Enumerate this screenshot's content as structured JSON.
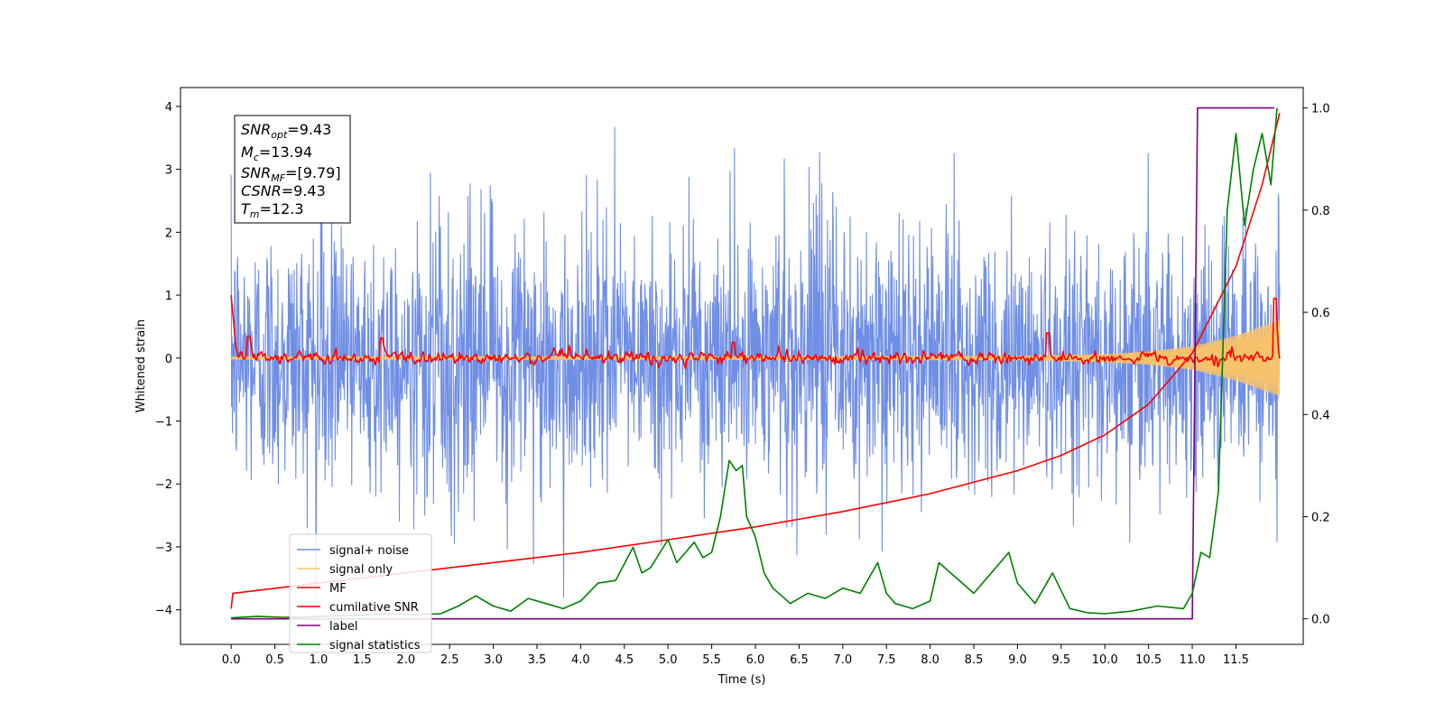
{
  "chart_data": {
    "type": "line",
    "xlabel": "Time (s)",
    "ylabel": "Whitened strain",
    "ylabel_right": "",
    "xlim": [
      -0.58,
      12.27
    ],
    "ylim": [
      -4.55,
      4.3
    ],
    "ylim_right": [
      -0.05,
      1.04
    ],
    "x_ticks": [
      "0.0",
      "0.5",
      "1.0",
      "1.5",
      "2.0",
      "2.5",
      "3.0",
      "3.5",
      "4.0",
      "4.5",
      "5.0",
      "5.5",
      "6.0",
      "6.5",
      "7.0",
      "7.5",
      "8.0",
      "8.5",
      "9.0",
      "9.5",
      "10.0",
      "10.5",
      "11.0",
      "11.5"
    ],
    "y_ticks_left": [
      "4",
      "3",
      "2",
      "1",
      "0",
      "−1",
      "−2",
      "−3",
      "−4"
    ],
    "y_ticks_right": [
      "1.0",
      "0.8",
      "0.6",
      "0.4",
      "0.2",
      "0.0"
    ],
    "grid": false,
    "legend_position": "lower-left",
    "annotation": {
      "line1": {
        "name": "SNR",
        "sub": "opt",
        "value": "=9.43"
      },
      "line2": {
        "name": "M",
        "sub": "c",
        "value": "=13.94"
      },
      "line3": {
        "name": "SNR",
        "sub": "MF",
        "value": "=[9.79]"
      },
      "line4": {
        "name": "CSNR",
        "sub": "",
        "value": "=9.43"
      },
      "line5": {
        "name": "T",
        "sub": "m",
        "value": "=12.3"
      }
    },
    "series": [
      {
        "name": "signal+ noise",
        "axis": "left",
        "color": "#6f8ee6",
        "style": "noise",
        "t_range": [
          0,
          12.0
        ],
        "band_approx": [
          -2.5,
          2.5
        ],
        "peak_approx": [
          -4.1,
          3.9
        ]
      },
      {
        "name": "signal only",
        "axis": "left",
        "color": "#f6c26b",
        "style": "chirp",
        "t_range": [
          0,
          12.0
        ],
        "envelope_t": [
          0,
          9,
          10,
          10.5,
          11,
          11.5,
          12.0
        ],
        "envelope_amp": [
          0.02,
          0.03,
          0.06,
          0.1,
          0.18,
          0.35,
          0.6
        ]
      },
      {
        "name": "MF",
        "axis": "left",
        "color": "#ff0000",
        "style": "mf",
        "t_range": [
          0,
          12.0
        ],
        "start_value": 1.0,
        "band_approx": [
          -0.15,
          0.15
        ],
        "spikes_t": [
          0.2,
          1.72,
          5.75,
          9.35,
          11.95
        ],
        "spikes_v": [
          0.35,
          0.32,
          0.25,
          0.4,
          0.95
        ]
      },
      {
        "name": "cumilative SNR",
        "axis": "right",
        "color": "#ff0000",
        "style": "line",
        "x": [
          0,
          0.02,
          1,
          2,
          3,
          4,
          5,
          6,
          7,
          8,
          9,
          9.5,
          10,
          10.5,
          11,
          11.5,
          11.8,
          12.0
        ],
        "y": [
          0.02,
          0.05,
          0.07,
          0.09,
          0.11,
          0.13,
          0.155,
          0.18,
          0.21,
          0.245,
          0.29,
          0.32,
          0.36,
          0.42,
          0.52,
          0.69,
          0.85,
          0.99
        ]
      },
      {
        "name": "label",
        "axis": "right",
        "color": "#800080",
        "style": "line",
        "x": [
          0,
          11.0,
          11.06,
          11.94
        ],
        "y": [
          0,
          0,
          1.0,
          1.0
        ]
      },
      {
        "name": "signal statistics",
        "axis": "right",
        "color": "#008000",
        "style": "line",
        "x": [
          0,
          0.3,
          0.6,
          0.9,
          1.2,
          1.5,
          1.8,
          2.1,
          2.4,
          2.6,
          2.8,
          3.0,
          3.2,
          3.4,
          3.6,
          3.8,
          4.0,
          4.2,
          4.4,
          4.6,
          4.7,
          4.8,
          5.0,
          5.1,
          5.2,
          5.3,
          5.4,
          5.5,
          5.6,
          5.7,
          5.78,
          5.85,
          5.9,
          6.0,
          6.1,
          6.2,
          6.4,
          6.6,
          6.8,
          7.0,
          7.2,
          7.4,
          7.5,
          7.6,
          7.8,
          8.0,
          8.1,
          8.3,
          8.5,
          8.7,
          8.9,
          9.0,
          9.2,
          9.4,
          9.6,
          9.8,
          10.0,
          10.3,
          10.6,
          10.9,
          11.0,
          11.1,
          11.2,
          11.3,
          11.4,
          11.5,
          11.6,
          11.7,
          11.8,
          11.9,
          11.97
        ],
        "y": [
          0.002,
          0.005,
          0.003,
          0.004,
          0.006,
          0.007,
          0.01,
          0.008,
          0.01,
          0.025,
          0.045,
          0.025,
          0.015,
          0.04,
          0.03,
          0.02,
          0.035,
          0.07,
          0.075,
          0.14,
          0.09,
          0.1,
          0.155,
          0.11,
          0.13,
          0.15,
          0.12,
          0.13,
          0.2,
          0.31,
          0.29,
          0.3,
          0.2,
          0.16,
          0.09,
          0.06,
          0.03,
          0.05,
          0.04,
          0.06,
          0.05,
          0.11,
          0.05,
          0.03,
          0.02,
          0.035,
          0.11,
          0.08,
          0.05,
          0.09,
          0.13,
          0.07,
          0.03,
          0.09,
          0.02,
          0.012,
          0.01,
          0.015,
          0.025,
          0.02,
          0.05,
          0.13,
          0.12,
          0.25,
          0.8,
          0.95,
          0.77,
          0.88,
          0.95,
          0.85,
          1.0
        ]
      }
    ]
  }
}
